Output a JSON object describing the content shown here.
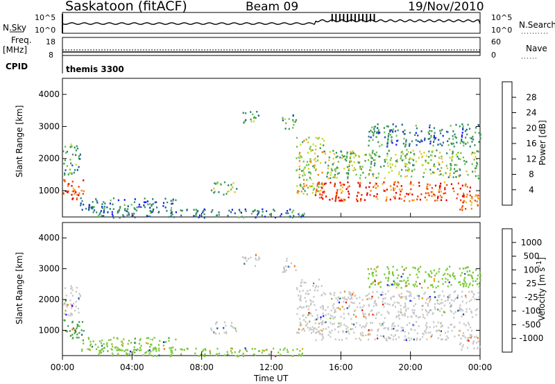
{
  "header": {
    "station": "Saskatoon (fitACF)",
    "beam": "Beam 09",
    "date": "19/Nov/2010"
  },
  "noise_panel": {
    "left_label": "N.Sky",
    "left_ticks": [
      "10^5",
      "10^0"
    ],
    "right_ticks": [
      "10^5",
      "10^0"
    ],
    "right_label": "N.Search"
  },
  "freq_panel": {
    "left_label_1": "Freq.",
    "left_label_2": "[MHz]",
    "left_ticks": [
      "18",
      "8"
    ],
    "right_ticks": [
      "60",
      "0"
    ],
    "right_label": "Nave"
  },
  "cpid": {
    "label": "CPID",
    "value": "themis 3300"
  },
  "x_axis": {
    "ticks": [
      "00:00",
      "04:00",
      "08:00",
      "12:00",
      "16:00",
      "20:00",
      "00:00"
    ],
    "label": "Time UT"
  },
  "power_panel": {
    "ylabel": "Slant Range [km]",
    "yticks": [
      "1000",
      "2000",
      "3000",
      "4000"
    ],
    "colorbar_label": "Power [dB]",
    "colorbar_ticks": [
      "4",
      "8",
      "12",
      "16",
      "20",
      "24",
      "28"
    ],
    "colors": [
      "#1a1aff",
      "#1f4fa8",
      "#2e7d7d",
      "#3a9a55",
      "#6cc34a",
      "#c8d82a",
      "#f5b820",
      "#f57d10",
      "#f04010",
      "#e00000"
    ]
  },
  "velocity_panel": {
    "ylabel": "Slant Range [km]",
    "yticks": [
      "1000",
      "2000",
      "3000",
      "4000"
    ],
    "colorbar_label": "Velocity [m s^-1]",
    "colorbar_ticks": [
      "1000",
      "500",
      "100",
      "25",
      "-25",
      "-100",
      "-500",
      "-1000"
    ],
    "colors": [
      "#1a1aff",
      "#1f5aa8",
      "#2e7d6a",
      "#45a04a",
      "#7cc83a",
      "#c8c8c8",
      "#c8a030",
      "#f5a020",
      "#f57010",
      "#e02000"
    ]
  },
  "chart_data": {
    "type": "heatmap",
    "title": "Saskatoon (fitACF)",
    "x_range_hours": [
      0,
      24
    ],
    "y_range_km": [
      180,
      4500
    ],
    "xlabel": "Time UT",
    "ylabel": "Slant Range [km]",
    "power_range_db": [
      0,
      32
    ],
    "velocity_range_ms": [
      -1000,
      1000
    ],
    "echo_regions": [
      {
        "t": [
          0.0,
          1.2
        ],
        "r": [
          700,
          1400
        ],
        "power": 28,
        "velocity": 300
      },
      {
        "t": [
          0.0,
          1.0
        ],
        "r": [
          1500,
          2500
        ],
        "power": 10,
        "velocity": 25
      },
      {
        "t": [
          1.0,
          6.5
        ],
        "r": [
          350,
          800
        ],
        "power": 8,
        "velocity": 150
      },
      {
        "t": [
          2.0,
          14.0
        ],
        "r": [
          180,
          450
        ],
        "power": 6,
        "velocity": 100
      },
      {
        "t": [
          8.5,
          10.0
        ],
        "r": [
          900,
          1300
        ],
        "power": 14,
        "velocity": 25
      },
      {
        "t": [
          10.3,
          11.3
        ],
        "r": [
          3100,
          3500
        ],
        "power": 10,
        "velocity": 25
      },
      {
        "t": [
          12.6,
          13.4
        ],
        "r": [
          2900,
          3400
        ],
        "power": 10,
        "velocity": 25
      },
      {
        "t": [
          13.4,
          15.0
        ],
        "r": [
          900,
          2700
        ],
        "power": 16,
        "velocity": 25
      },
      {
        "t": [
          14.5,
          23.5
        ],
        "r": [
          700,
          1300
        ],
        "power": 28,
        "velocity": -25
      },
      {
        "t": [
          15.0,
          24.0
        ],
        "r": [
          1400,
          2300
        ],
        "power": 14,
        "velocity": 25
      },
      {
        "t": [
          17.5,
          24.0
        ],
        "r": [
          2400,
          3100
        ],
        "power": 8,
        "velocity": 100
      },
      {
        "t": [
          22.8,
          24.0
        ],
        "r": [
          400,
          900
        ],
        "power": 24,
        "velocity": 25
      }
    ]
  }
}
